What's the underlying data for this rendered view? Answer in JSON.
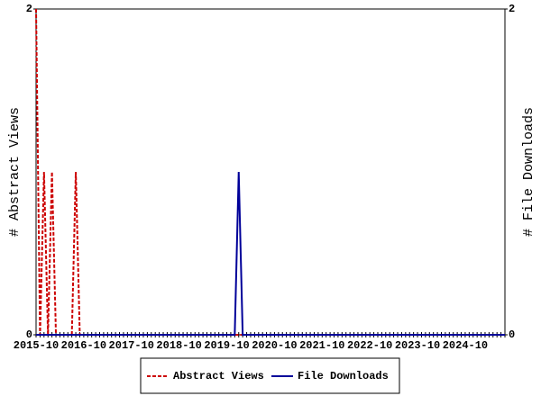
{
  "chart_data": {
    "type": "line",
    "categories": [
      "2015-10",
      null,
      null,
      null,
      null,
      null,
      null,
      null,
      null,
      null,
      null,
      null,
      "2016-10",
      null,
      null,
      null,
      null,
      null,
      null,
      null,
      null,
      null,
      null,
      null,
      "2017-10",
      null,
      null,
      null,
      null,
      null,
      null,
      null,
      null,
      null,
      null,
      null,
      "2018-10",
      null,
      null,
      null,
      null,
      null,
      null,
      null,
      null,
      null,
      null,
      null,
      "2019-10",
      null,
      null,
      null,
      null,
      null,
      null,
      null,
      null,
      null,
      null,
      null,
      "2020-10",
      null,
      null,
      null,
      null,
      null,
      null,
      null,
      null,
      null,
      null,
      null,
      "2021-10",
      null,
      null,
      null,
      null,
      null,
      null,
      null,
      null,
      null,
      null,
      null,
      "2022-10",
      null,
      null,
      null,
      null,
      null,
      null,
      null,
      null,
      null,
      null,
      null,
      "2023-10",
      null,
      null,
      null,
      null,
      null,
      null,
      null,
      null,
      null,
      null,
      null,
      "2024-10",
      null,
      null,
      null,
      null,
      null,
      null,
      null,
      null,
      null,
      null
    ],
    "series": [
      {
        "name": "Abstract Views",
        "color": "#cc0000",
        "dashed": true,
        "axis": "y",
        "values": [
          2,
          0,
          1,
          0,
          1,
          0,
          0,
          0,
          0,
          0,
          1,
          0,
          0,
          0,
          0,
          0,
          0,
          0,
          0,
          0,
          0,
          0,
          0,
          0,
          0,
          0,
          0,
          0,
          0,
          0,
          0,
          0,
          0,
          0,
          0,
          0,
          0,
          0,
          0,
          0,
          0,
          0,
          0,
          0,
          0,
          0,
          0,
          0,
          0,
          0,
          0,
          0,
          0,
          0,
          0,
          0,
          0,
          0,
          0,
          0,
          0,
          0,
          0,
          0,
          0,
          0,
          0,
          0,
          0,
          0,
          0,
          0,
          0,
          0,
          0,
          0,
          0,
          0,
          0,
          0,
          0,
          0,
          0,
          0,
          0,
          0,
          0,
          0,
          0,
          0,
          0,
          0,
          0,
          0,
          0,
          0,
          0,
          0,
          0,
          0,
          0,
          0,
          0,
          0,
          0,
          0,
          0,
          0,
          0,
          0,
          0,
          0,
          0,
          0,
          0,
          0,
          0,
          0,
          0
        ]
      },
      {
        "name": "File Downloads",
        "color": "#000099",
        "dashed": false,
        "axis": "y2",
        "values": [
          0,
          0,
          0,
          0,
          0,
          0,
          0,
          0,
          0,
          0,
          0,
          0,
          0,
          0,
          0,
          0,
          0,
          0,
          0,
          0,
          0,
          0,
          0,
          0,
          0,
          0,
          0,
          0,
          0,
          0,
          0,
          0,
          0,
          0,
          0,
          0,
          0,
          0,
          0,
          0,
          0,
          0,
          0,
          0,
          0,
          0,
          0,
          0,
          0,
          0,
          0,
          1,
          0,
          0,
          0,
          0,
          0,
          0,
          0,
          0,
          0,
          0,
          0,
          0,
          0,
          0,
          0,
          0,
          0,
          0,
          0,
          0,
          0,
          0,
          0,
          0,
          0,
          0,
          0,
          0,
          0,
          0,
          0,
          0,
          0,
          0,
          0,
          0,
          0,
          0,
          0,
          0,
          0,
          0,
          0,
          0,
          0,
          0,
          0,
          0,
          0,
          0,
          0,
          0,
          0,
          0,
          0,
          0,
          0,
          0,
          0,
          0,
          0,
          0,
          0,
          0,
          0,
          0,
          0
        ]
      }
    ],
    "y_label": "# Abstract Views",
    "y2_label": "# File Downloads",
    "ylim": [
      0,
      2
    ],
    "yticks": [
      0,
      2
    ],
    "y2lim": [
      0,
      2
    ],
    "y2ticks": [
      0,
      2
    ],
    "grid": false,
    "legend": "bottom"
  }
}
